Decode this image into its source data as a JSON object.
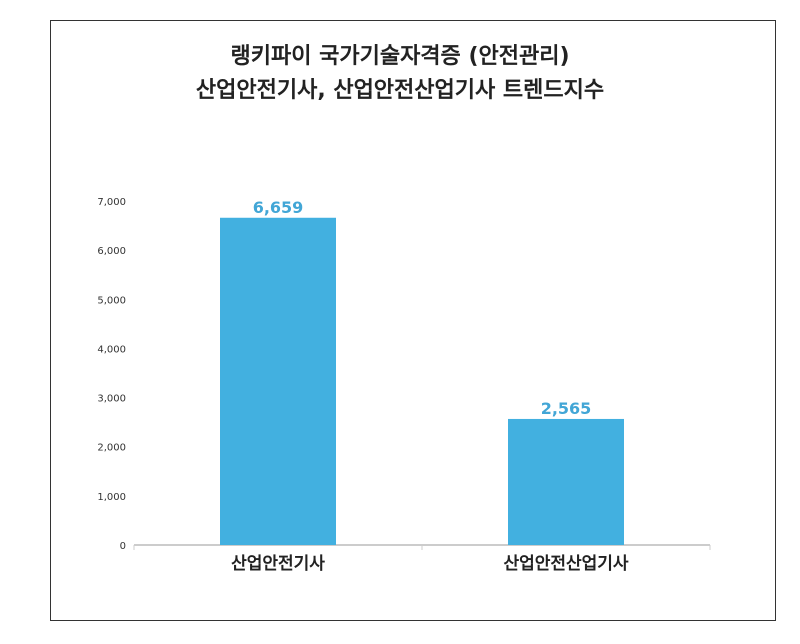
{
  "chart_data": {
    "type": "bar",
    "title_lines": [
      "랭키파이 국가기술자격증 (안전관리)",
      "산업안전기사, 산업안전산업기사 트렌드지수"
    ],
    "categories": [
      "산업안전기사",
      "산업안전산업기사"
    ],
    "values": [
      6659,
      2565
    ],
    "data_labels": [
      "6,659",
      "2,565"
    ],
    "ylim": [
      0,
      7000
    ],
    "yticks": [
      0,
      1000,
      2000,
      3000,
      4000,
      5000,
      6000,
      7000
    ],
    "ytick_labels": [
      "0",
      "1,000",
      "2,000",
      "3,000",
      "4,000",
      "5,000",
      "6,000",
      "7,000"
    ],
    "grid": false,
    "colors": {
      "bar": "#42b0e0",
      "data_label": "#42a6d6",
      "axis": "#999999",
      "tick_text": "#333333",
      "category_text": "#222222"
    }
  }
}
